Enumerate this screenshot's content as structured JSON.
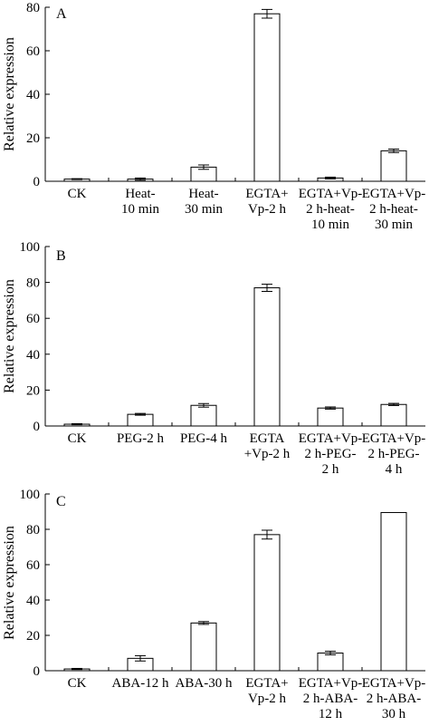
{
  "chart_data": [
    {
      "type": "bar",
      "panel_label": "A",
      "ylabel": "Relative expression",
      "ylim": [
        0,
        80
      ],
      "yticks": [
        0,
        20,
        40,
        60,
        80
      ],
      "categories": [
        [
          "CK"
        ],
        [
          "Heat-",
          "10 min"
        ],
        [
          "Heat-",
          "30 min"
        ],
        [
          "EGTA+",
          "Vp-2 h"
        ],
        [
          "EGTA+Vp-",
          "2 h-heat-",
          "10 min"
        ],
        [
          "EGTA+Vp-",
          "2 h-heat-",
          "30 min"
        ]
      ],
      "values": [
        1,
        1,
        6.5,
        77,
        1.5,
        14
      ],
      "errors": [
        0.2,
        0.5,
        1,
        2,
        0.4,
        0.8
      ]
    },
    {
      "type": "bar",
      "panel_label": "B",
      "ylabel": "Relative expression",
      "ylim": [
        0,
        100
      ],
      "yticks": [
        0,
        20,
        40,
        60,
        80,
        100
      ],
      "categories": [
        [
          "CK"
        ],
        [
          "PEG-2 h"
        ],
        [
          "PEG-4 h"
        ],
        [
          "EGTA",
          "+Vp-2 h"
        ],
        [
          "EGTA+Vp-",
          "2 h-PEG-",
          "2 h"
        ],
        [
          "EGTA+Vp-",
          "2 h-PEG-",
          "4 h"
        ]
      ],
      "values": [
        1,
        6.5,
        11.5,
        77,
        10,
        12
      ],
      "errors": [
        0.3,
        0.5,
        1,
        2,
        0.6,
        0.6
      ]
    },
    {
      "type": "bar",
      "panel_label": "C",
      "ylabel": "Relative expression",
      "ylim": [
        0,
        100
      ],
      "yticks": [
        0,
        20,
        40,
        60,
        80,
        100
      ],
      "categories": [
        [
          "CK"
        ],
        [
          "ABA-12 h"
        ],
        [
          "ABA-30 h"
        ],
        [
          "EGTA+",
          "Vp-2 h"
        ],
        [
          "EGTA+Vp-",
          "2 h-ABA-",
          "12 h"
        ],
        [
          "EGTA+Vp-",
          "2 h-ABA-",
          "30 h"
        ]
      ],
      "values": [
        1,
        7,
        27,
        77,
        10,
        89.5
      ],
      "errors": [
        0.3,
        1.5,
        0.8,
        2.5,
        1,
        0
      ]
    }
  ]
}
